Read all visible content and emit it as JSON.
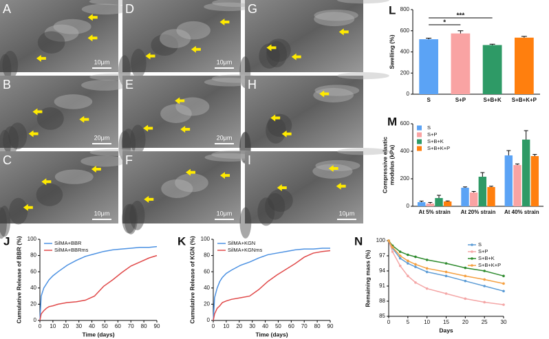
{
  "images": [
    {
      "label": "A",
      "scale_bar": "10μm"
    },
    {
      "label": "D",
      "scale_bar": "10μm"
    },
    {
      "label": "G"
    },
    {
      "label": "B",
      "scale_bar": "20μm"
    },
    {
      "label": "E",
      "scale_bar": "20μm"
    },
    {
      "label": "H"
    },
    {
      "label": "C",
      "scale_bar": "10μm"
    },
    {
      "label": "F",
      "scale_bar": "10μm"
    },
    {
      "label": "I",
      "scale_bar": "10μm"
    }
  ],
  "chart_data": [
    {
      "type": "bar",
      "panel": "L",
      "y_label": "Swelling (%)",
      "categories": [
        "S",
        "S+P",
        "S+B+K",
        "S+B+K+P"
      ],
      "values": [
        520,
        575,
        465,
        535
      ],
      "errors": [
        10,
        25,
        8,
        12
      ],
      "colors": [
        "#5ba3f5",
        "#f9a3a3",
        "#2e9a66",
        "#ff7f0e"
      ],
      "ylim": [
        0,
        800
      ],
      "yticks": [
        0,
        200,
        400,
        600,
        800
      ],
      "annotations": [
        {
          "text": "*",
          "between": [
            "S",
            "S+P"
          ]
        },
        {
          "text": "***",
          "between": [
            "S",
            "S+B+K"
          ]
        }
      ]
    },
    {
      "type": "bar",
      "panel": "M",
      "y_label": [
        "Compressive elastic",
        "modulus (kPa)"
      ],
      "categories": [
        "At 5% strain",
        "At 20% strain",
        "At 40% strain"
      ],
      "series": [
        {
          "name": "S",
          "color": "#5ba3f5",
          "values": [
            30,
            135,
            370
          ],
          "errors": [
            8,
            6,
            35
          ]
        },
        {
          "name": "S+P",
          "color": "#f9a3a3",
          "values": [
            20,
            100,
            300
          ],
          "errors": [
            8,
            8,
            8
          ]
        },
        {
          "name": "S+B+K",
          "color": "#2e9a66",
          "values": [
            60,
            215,
            485
          ],
          "errors": [
            20,
            30,
            65
          ]
        },
        {
          "name": "S+B+K+P",
          "color": "#ff7f0e",
          "values": [
            35,
            140,
            365
          ],
          "errors": [
            4,
            6,
            12
          ]
        }
      ],
      "ylim": [
        0,
        600
      ],
      "yticks": [
        0,
        200,
        400,
        600
      ],
      "legend": "upper left"
    },
    {
      "type": "line",
      "panel": "J",
      "x_label": "Time (days)",
      "y_label": "Cumulative Release of BBR (%)",
      "x": [
        0,
        1,
        3,
        5,
        7,
        10,
        14,
        21,
        28,
        35,
        42,
        49,
        56,
        63,
        70,
        77,
        84,
        90
      ],
      "series": [
        {
          "name": "SilMA+BBR",
          "color": "#4a90e2",
          "values": [
            0,
            30,
            40,
            45,
            50,
            55,
            60,
            68,
            74,
            79,
            82,
            85,
            87,
            88,
            89,
            90,
            90,
            91
          ]
        },
        {
          "name": "SilMA+BBRms",
          "color": "#e04848",
          "values": [
            0,
            8,
            12,
            15,
            17,
            18,
            20,
            22,
            23,
            25,
            30,
            42,
            50,
            59,
            67,
            72,
            77,
            80
          ]
        }
      ],
      "xlim": [
        0,
        90
      ],
      "xticks": [
        0,
        10,
        20,
        30,
        40,
        50,
        60,
        70,
        80,
        90
      ],
      "ylim": [
        0,
        100
      ],
      "yticks": [
        0,
        20,
        40,
        60,
        80,
        100
      ],
      "legend": "upper left"
    },
    {
      "type": "line",
      "panel": "K",
      "x_label": "Time (days)",
      "y_label": "Cumulative Release of KGN (%)",
      "x": [
        0,
        1,
        3,
        5,
        7,
        10,
        14,
        21,
        28,
        35,
        42,
        49,
        56,
        63,
        70,
        77,
        84,
        90
      ],
      "series": [
        {
          "name": "SilMA+KGN",
          "color": "#4a90e2",
          "values": [
            0,
            28,
            40,
            48,
            53,
            58,
            62,
            68,
            72,
            77,
            81,
            83,
            85,
            87,
            88,
            88,
            89,
            89
          ]
        },
        {
          "name": "SilMA+KGNms",
          "color": "#e04848",
          "values": [
            0,
            8,
            15,
            18,
            22,
            24,
            26,
            28,
            30,
            38,
            48,
            56,
            63,
            70,
            78,
            83,
            85,
            86
          ]
        }
      ],
      "xlim": [
        0,
        90
      ],
      "xticks": [
        0,
        10,
        20,
        30,
        40,
        50,
        60,
        70,
        80,
        90
      ],
      "ylim": [
        0,
        100
      ],
      "yticks": [
        0,
        20,
        40,
        60,
        80,
        100
      ],
      "legend": "upper left"
    },
    {
      "type": "line",
      "panel": "N",
      "x_label": "Days",
      "y_label": "Remaining mass (%)",
      "x": [
        0,
        1,
        3,
        5,
        7,
        10,
        15,
        20,
        25,
        30
      ],
      "series": [
        {
          "name": "S",
          "color": "#5b9bd5",
          "values": [
            100,
            98.5,
            96.5,
            95.5,
            94.8,
            93.8,
            93,
            92,
            91,
            90
          ]
        },
        {
          "name": "S+P",
          "color": "#f4a6a6",
          "values": [
            100,
            97.8,
            95,
            93,
            91.7,
            90.5,
            89.5,
            88.5,
            87.8,
            87.3
          ]
        },
        {
          "name": "S+B+K",
          "color": "#2e8b2e",
          "values": [
            100,
            99,
            97.8,
            97.2,
            96.8,
            96.2,
            95.5,
            94.6,
            94,
            93
          ]
        },
        {
          "name": "S+B+K+P",
          "color": "#f5a040",
          "values": [
            100,
            98.7,
            97,
            96,
            95.3,
            94.5,
            93.8,
            93,
            92.3,
            91.5
          ]
        }
      ],
      "xlim": [
        0,
        30
      ],
      "xticks": [
        0,
        5,
        10,
        15,
        20,
        25,
        30
      ],
      "ylim": [
        85,
        100
      ],
      "yticks": [
        85,
        88,
        91,
        94,
        97,
        100
      ],
      "markers": true,
      "legend": "upper right"
    }
  ]
}
